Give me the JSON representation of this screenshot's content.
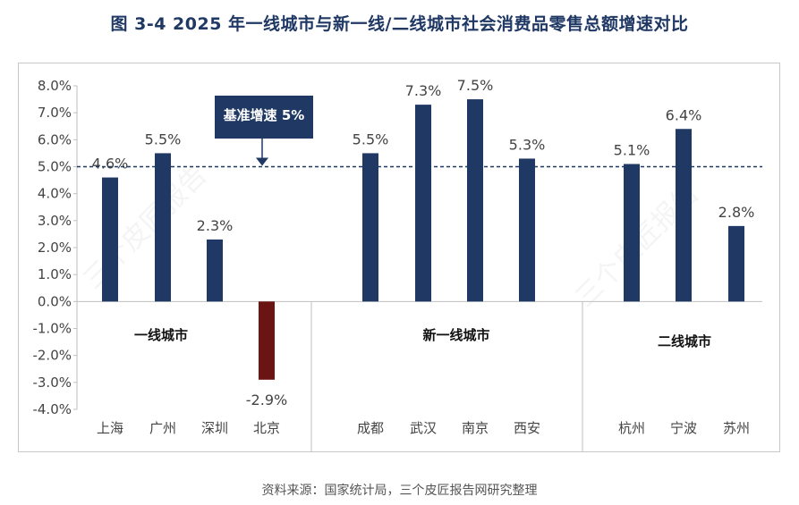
{
  "title": "图 3-4 2025 年一线城市与新一线/二线城市社会消费品零售总额增速对比",
  "source": "资料来源：国家统计局，三个皮匠报告网研究整理",
  "watermark": "三个皮匠报告",
  "chart_data": {
    "type": "bar",
    "title": "图 3-4 2025 年一线城市与新一线/二线城市社会消费品零售总额增速对比",
    "unit": "%",
    "ylim": [
      -4.0,
      8.0
    ],
    "yticks": [
      "8.0%",
      "7.0%",
      "6.0%",
      "5.0%",
      "4.0%",
      "3.0%",
      "2.0%",
      "1.0%",
      "0.0%",
      "-1.0%",
      "-2.0%",
      "-3.0%",
      "-4.0%"
    ],
    "ytick_values": [
      8,
      7,
      6,
      5,
      4,
      3,
      2,
      1,
      0,
      -1,
      -2,
      -3,
      -4
    ],
    "categories": [
      "上海",
      "广州",
      "深圳",
      "北京",
      "成都",
      "武汉",
      "南京",
      "西安",
      "杭州",
      "宁波",
      "苏州"
    ],
    "values": [
      4.6,
      5.5,
      2.3,
      -2.9,
      5.5,
      7.3,
      7.5,
      5.3,
      5.1,
      6.4,
      2.8
    ],
    "data_labels": [
      "4.6%",
      "5.5%",
      "2.3%",
      "-2.9%",
      "5.5%",
      "7.3%",
      "7.5%",
      "5.3%",
      "5.1%",
      "6.4%",
      "2.8%"
    ],
    "groups": [
      {
        "label": "一线城市",
        "count": 4
      },
      {
        "label": "新一线城市",
        "count": 4
      },
      {
        "label": "二线城市",
        "count": 3
      }
    ],
    "reference_line": {
      "value": 5.0,
      "label": "基准增速 5%"
    },
    "colors": {
      "positive": "#1f3864",
      "negative": "#6b1414",
      "reference": "#1f3864"
    },
    "grid": false
  }
}
